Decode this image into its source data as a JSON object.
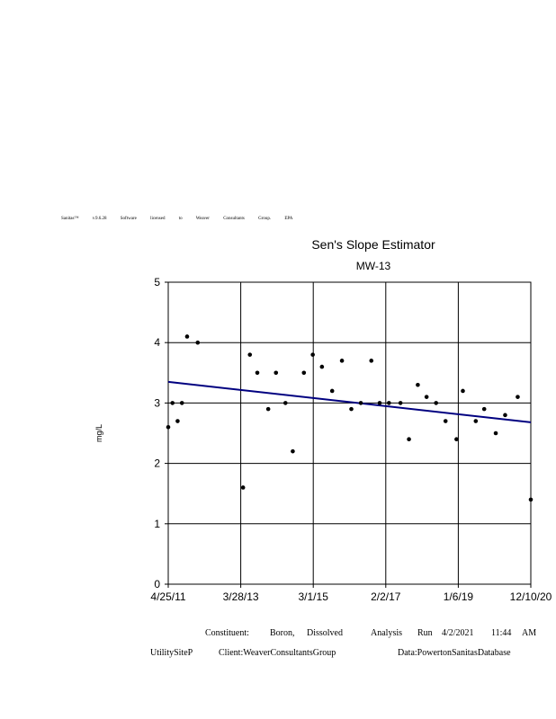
{
  "license": {
    "words": [
      "Sanitas™",
      "v.9.6.28",
      "Software",
      "licensed",
      "to",
      "Weaver",
      "Consultants",
      "Group.",
      "EPA"
    ]
  },
  "chart_data": {
    "type": "scatter",
    "title": "Sen's Slope Estimator",
    "subtitle": "MW-13",
    "xlabel": "",
    "ylabel": "mg/L",
    "ylim": [
      0,
      5
    ],
    "xlim": [
      "2011-04-25",
      "2020-12-10"
    ],
    "y_ticks": [
      0,
      1,
      2,
      3,
      4,
      5
    ],
    "x_ticks": [
      "4/25/11",
      "3/28/13",
      "3/1/15",
      "2/2/17",
      "1/6/19",
      "12/10/20"
    ],
    "grid": true,
    "colors": {
      "points": "#000000",
      "trend": "#000080"
    },
    "points": [
      {
        "x": "2011-04-25",
        "y": 2.6
      },
      {
        "x": "2011-06-05",
        "y": 3.0
      },
      {
        "x": "2011-07-25",
        "y": 2.7
      },
      {
        "x": "2011-09-05",
        "y": 3.0
      },
      {
        "x": "2011-10-25",
        "y": 4.1
      },
      {
        "x": "2012-02-05",
        "y": 4.0
      },
      {
        "x": "2013-04-20",
        "y": 1.6
      },
      {
        "x": "2013-06-25",
        "y": 3.8
      },
      {
        "x": "2013-09-05",
        "y": 3.5
      },
      {
        "x": "2013-12-20",
        "y": 2.9
      },
      {
        "x": "2014-03-05",
        "y": 3.5
      },
      {
        "x": "2014-06-05",
        "y": 3.0
      },
      {
        "x": "2014-08-15",
        "y": 2.2
      },
      {
        "x": "2014-12-01",
        "y": 3.5
      },
      {
        "x": "2015-02-25",
        "y": 3.8
      },
      {
        "x": "2015-05-25",
        "y": 3.6
      },
      {
        "x": "2015-09-01",
        "y": 3.2
      },
      {
        "x": "2015-12-05",
        "y": 3.7
      },
      {
        "x": "2016-03-05",
        "y": 2.9
      },
      {
        "x": "2016-06-05",
        "y": 3.0
      },
      {
        "x": "2016-09-15",
        "y": 3.7
      },
      {
        "x": "2016-12-05",
        "y": 3.0
      },
      {
        "x": "2017-03-05",
        "y": 3.0
      },
      {
        "x": "2017-06-25",
        "y": 3.0
      },
      {
        "x": "2017-09-15",
        "y": 2.4
      },
      {
        "x": "2017-12-10",
        "y": 3.3
      },
      {
        "x": "2018-03-05",
        "y": 3.1
      },
      {
        "x": "2018-06-05",
        "y": 3.0
      },
      {
        "x": "2018-09-05",
        "y": 2.7
      },
      {
        "x": "2018-12-20",
        "y": 2.4
      },
      {
        "x": "2019-02-20",
        "y": 3.2
      },
      {
        "x": "2019-06-25",
        "y": 2.7
      },
      {
        "x": "2019-09-15",
        "y": 2.9
      },
      {
        "x": "2020-01-05",
        "y": 2.5
      },
      {
        "x": "2020-04-05",
        "y": 2.8
      },
      {
        "x": "2020-08-05",
        "y": 3.1
      },
      {
        "x": "2020-12-10",
        "y": 1.4
      }
    ],
    "trend_line": [
      {
        "x": "2011-04-25",
        "y": 3.35
      },
      {
        "x": "2020-12-10",
        "y": 2.68
      }
    ]
  },
  "footer": {
    "constituent_label": "Constituent:",
    "constituent_word1": "Boron,",
    "constituent_word2": "Dissolved",
    "analysis_label": "Analysis",
    "run_label": "Run",
    "run_date": "4/2/2021",
    "run_time": "11:44",
    "run_ampm": "AM",
    "site": "UtilitySiteP",
    "client": "Client:WeaverConsultantsGroup",
    "data": "Data:PowertonSanitasDatabase"
  }
}
